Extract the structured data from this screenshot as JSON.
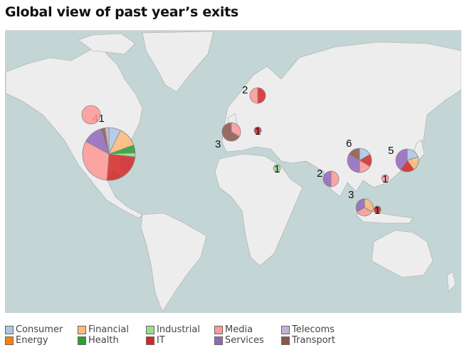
{
  "title": "Global view of past year’s exits",
  "categories": [
    {
      "name": "Consumer",
      "color": "#aec7e8"
    },
    {
      "name": "Energy",
      "color": "#ff7f0e"
    },
    {
      "name": "Financial",
      "color": "#ffbb78"
    },
    {
      "name": "Health",
      "color": "#2ca02c"
    },
    {
      "name": "Industrial",
      "color": "#98df8a"
    },
    {
      "name": "IT",
      "color": "#d62728"
    },
    {
      "name": "Media",
      "color": "#ff9896"
    },
    {
      "name": "Services",
      "color": "#9467bd"
    },
    {
      "name": "Telecoms",
      "color": "#c5b0d5"
    },
    {
      "name": "Transport",
      "color": "#8c564b"
    }
  ],
  "pies": [
    {
      "region": "United States",
      "label": "41",
      "slices": {
        "Consumer": 3,
        "Financial": 5,
        "Health": 2,
        "Industrial": 1,
        "IT": 10,
        "Media": 13,
        "Services": 5,
        "Transport": 1,
        "Telecoms": 1
      }
    },
    {
      "region": "Canada",
      "label": "",
      "slices": {
        "Media": 1
      }
    },
    {
      "region": "Scandinavia",
      "label": "2",
      "slices": {
        "IT": 1,
        "Media": 1
      }
    },
    {
      "region": "United Kingdom",
      "label": "3",
      "slices": {
        "Media": 1,
        "Transport": 2
      }
    },
    {
      "region": "Poland",
      "label": "1",
      "slices": {
        "IT": 1
      }
    },
    {
      "region": "Israel",
      "label": "1",
      "slices": {
        "Industrial": 1
      }
    },
    {
      "region": "India",
      "label": "2",
      "slices": {
        "Media": 1,
        "Services": 1
      }
    },
    {
      "region": "China",
      "label": "6",
      "slices": {
        "Consumer": 1,
        "IT": 1,
        "Media": 1,
        "Services": 2,
        "Transport": 1
      }
    },
    {
      "region": "Japan",
      "label": "5",
      "slices": {
        "Consumer": 1,
        "Financial": 1,
        "IT": 1,
        "Services": 2
      }
    },
    {
      "region": "Taiwan",
      "label": "1",
      "slices": {
        "Media": 1
      }
    },
    {
      "region": "Singapore",
      "label": "3",
      "slices": {
        "Financial": 1,
        "Media": 1,
        "Services": 1
      }
    },
    {
      "region": "Indonesia",
      "label": "1",
      "slices": {
        "IT": 1
      }
    }
  ],
  "colors": {
    "ocean": "#c3d5d5",
    "land": "#ededed",
    "border": "#a9a9a9"
  }
}
